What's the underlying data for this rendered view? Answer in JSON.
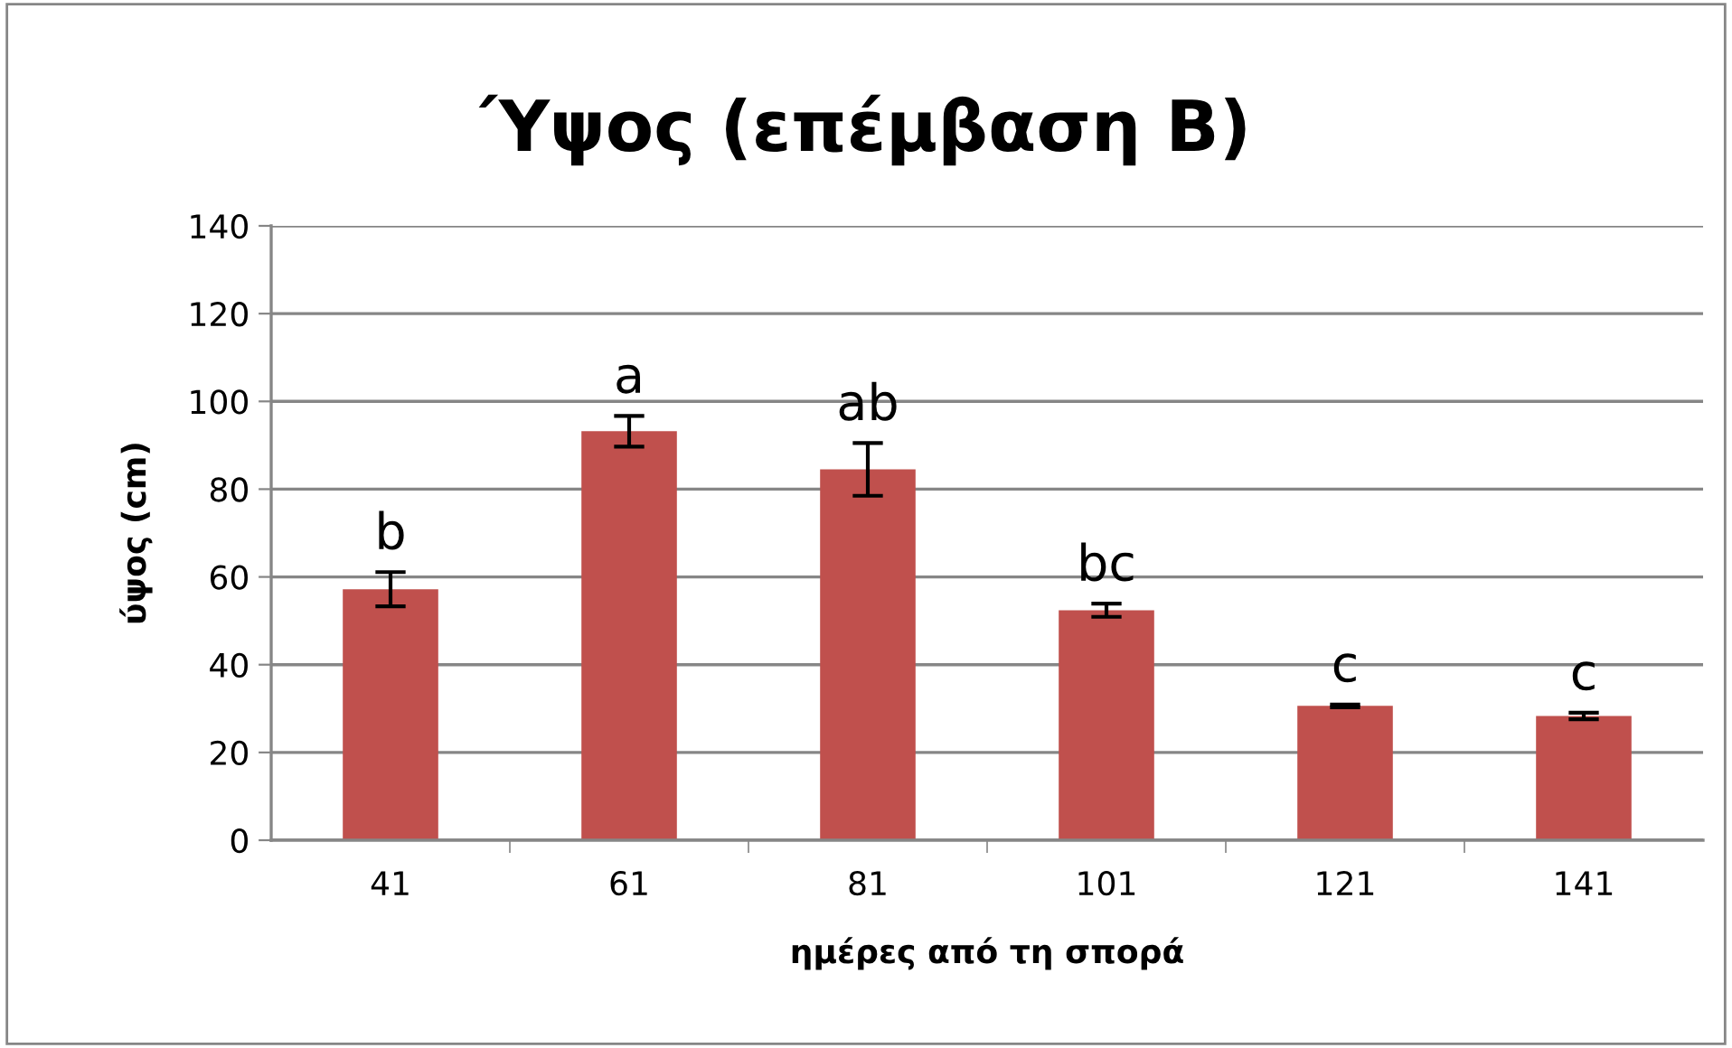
{
  "chart_data": {
    "type": "bar",
    "title": "Ύψος (επέμβαση Β)",
    "xlabel": "ημέρες από τη σπορά",
    "ylabel": "ύψος (cm)",
    "categories": [
      "41",
      "61",
      "81",
      "101",
      "121",
      "141"
    ],
    "values": [
      57.2,
      93.2,
      84.5,
      52.4,
      30.6,
      28.3
    ],
    "errors": [
      3.9,
      3.5,
      6,
      1.5,
      0.3,
      0.75
    ],
    "color": "#c0504d",
    "ylim": [
      0,
      140
    ],
    "yticks": [
      0,
      20,
      40,
      60,
      80,
      100,
      120,
      140
    ],
    "grid": "y",
    "annotations": [
      "b",
      "a",
      "ab",
      "bc",
      "c",
      "c"
    ]
  }
}
